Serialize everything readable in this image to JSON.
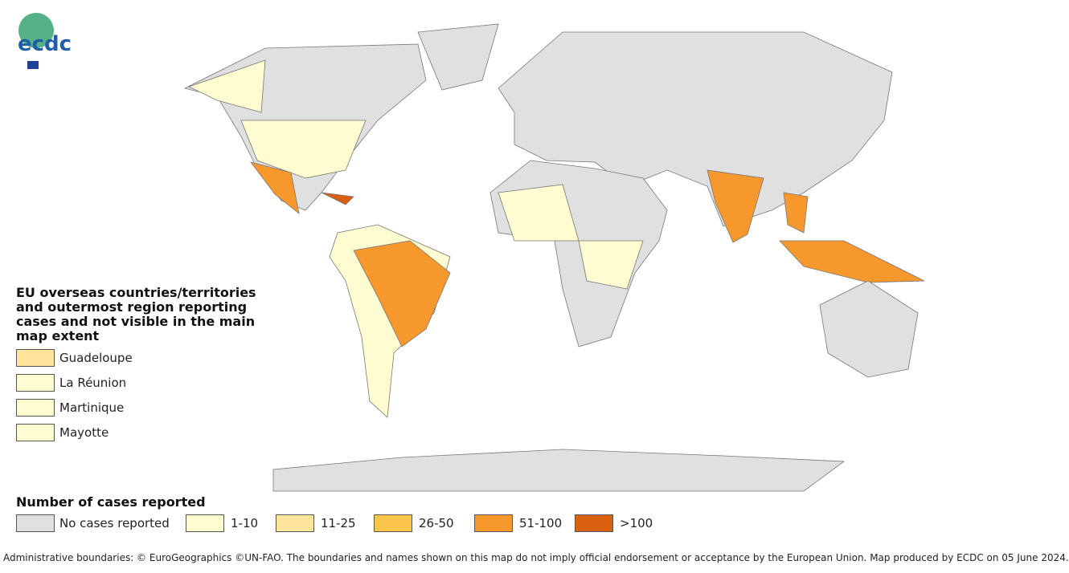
{
  "logo": {
    "text": "ecdc"
  },
  "overseas_legend": {
    "title": "EU overseas countries/territories and outermost region reporting cases and not visible in the main map extent",
    "items": [
      {
        "label": "Guadeloupe",
        "color": "#fde49a"
      },
      {
        "label": "La Réunion",
        "color": "#fefcd0"
      },
      {
        "label": "Martinique",
        "color": "#fefcd0"
      },
      {
        "label": "Mayotte",
        "color": "#fefcd0"
      }
    ]
  },
  "cases_legend": {
    "title": "Number of cases reported",
    "items": [
      {
        "label": "No cases reported",
        "color": "#e0e0e0"
      },
      {
        "label": "1-10",
        "color": "#fefcd0"
      },
      {
        "label": "11-25",
        "color": "#fde49a"
      },
      {
        "label": "26-50",
        "color": "#fdc44e"
      },
      {
        "label": "51-100",
        "color": "#f7982d"
      },
      {
        "label": ">100",
        "color": "#d9600f"
      }
    ]
  },
  "footer": "Administrative boundaries: © EuroGeographics ©UN-FAO. The boundaries and names shown on this map do not imply official endorsement or acceptance by the European Union. Map produced by ECDC on 05 June 2024."
}
